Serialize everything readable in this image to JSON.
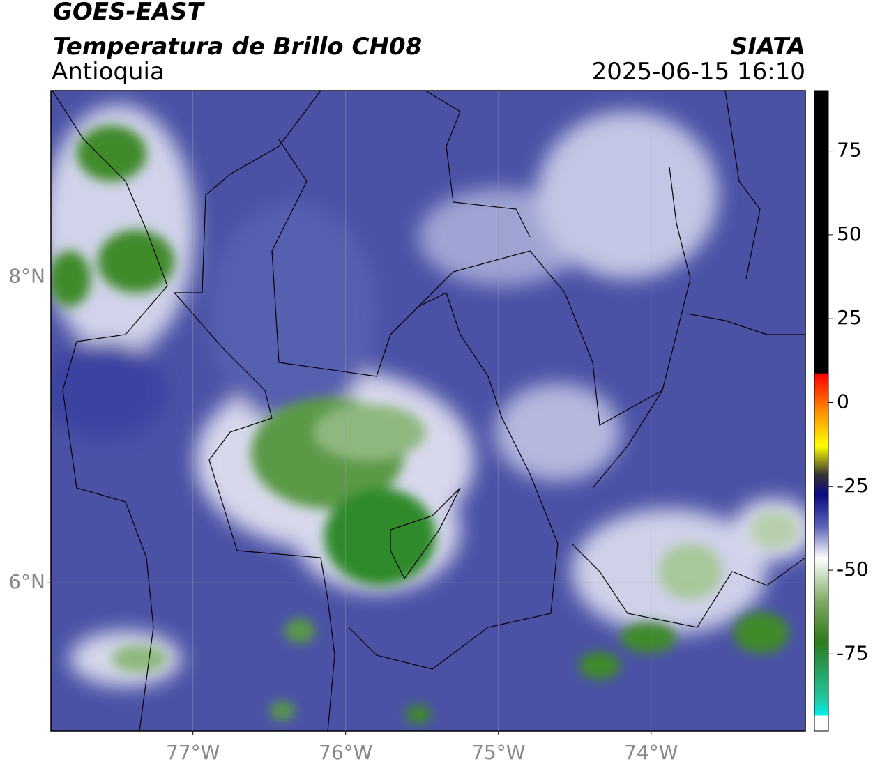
{
  "header": {
    "title": "GOES-EAST",
    "subtitle": "Temperatura de Brillo CH08",
    "region": "Antioquia",
    "source": "SIATA",
    "datetime": "2025-06-15 16:10"
  },
  "map": {
    "xlim": [
      -77.93,
      -72.99
    ],
    "ylim": [
      5.03,
      9.22
    ],
    "xticks": [
      {
        "value": -77,
        "label": "77°W"
      },
      {
        "value": -76,
        "label": "76°W"
      },
      {
        "value": -75,
        "label": "75°W"
      },
      {
        "value": -74,
        "label": "74°W"
      }
    ],
    "yticks": [
      {
        "value": 6,
        "label": "6°N"
      },
      {
        "value": 8,
        "label": "8°N"
      }
    ],
    "grid": true
  },
  "colorbar": {
    "lim": [
      -98,
      93
    ],
    "ticks": [
      75,
      50,
      25,
      0,
      -25,
      -50,
      -75
    ]
  }
}
